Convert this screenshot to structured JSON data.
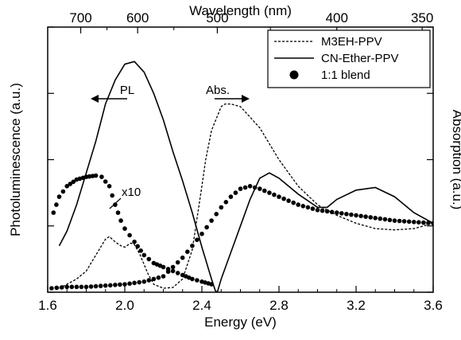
{
  "chart_data": {
    "type": "line",
    "xlabel": "Energy (eV)",
    "ylabel": "Photoluminescence (a.u.)",
    "ylabel_right": "Absorption (a.u.)",
    "xlabel_top": "Wavelength (nm)",
    "xlim": [
      1.6,
      3.6
    ],
    "ylim": [
      0,
      100
    ],
    "x_ticks": [
      1.6,
      2.0,
      2.4,
      2.8,
      3.2,
      3.6
    ],
    "x_tick_labels": [
      "1.6",
      "2.0",
      "2.4",
      "2.8",
      "3.2",
      "3.6"
    ],
    "x_minor_step": 0.1,
    "y_ticks": [
      0,
      25,
      50,
      75,
      100
    ],
    "top_ticks_nm": [
      700,
      600,
      500,
      400,
      350
    ],
    "top_tick_labels": [
      "700",
      "600",
      "500",
      "400",
      "350"
    ],
    "top_minor_nm": [
      650,
      550,
      450
    ],
    "grid": false,
    "legend_position": "top-right",
    "annotations": {
      "pl": "PL",
      "abs": "Abs.",
      "x10": "x10"
    },
    "series": [
      {
        "name": "M3EH-PPV",
        "style": "dashed",
        "points": [
          [
            1.66,
            1.5
          ],
          [
            1.7,
            3
          ],
          [
            1.75,
            5
          ],
          [
            1.8,
            8
          ],
          [
            1.85,
            14
          ],
          [
            1.9,
            20
          ],
          [
            1.92,
            21
          ],
          [
            1.95,
            19
          ],
          [
            1.98,
            17.5
          ],
          [
            2.0,
            17
          ],
          [
            2.03,
            18.5
          ],
          [
            2.05,
            18
          ],
          [
            2.08,
            14
          ],
          [
            2.12,
            7
          ],
          [
            2.15,
            3
          ],
          [
            2.2,
            1.5
          ],
          [
            2.25,
            1.8
          ],
          [
            2.3,
            5
          ],
          [
            2.35,
            16
          ],
          [
            2.4,
            40
          ],
          [
            2.42,
            50
          ],
          [
            2.45,
            61
          ],
          [
            2.5,
            70
          ],
          [
            2.52,
            71
          ],
          [
            2.55,
            71
          ],
          [
            2.6,
            70
          ],
          [
            2.7,
            62
          ],
          [
            2.8,
            50
          ],
          [
            2.9,
            40
          ],
          [
            3.0,
            33
          ],
          [
            3.1,
            29
          ],
          [
            3.2,
            26
          ],
          [
            3.3,
            24
          ],
          [
            3.4,
            23.5
          ],
          [
            3.5,
            24
          ],
          [
            3.6,
            26
          ]
        ]
      },
      {
        "name": "CN-Ether-PPV",
        "style": "solid",
        "points": [
          [
            1.66,
            17.5
          ],
          [
            1.7,
            23
          ],
          [
            1.75,
            33
          ],
          [
            1.8,
            45
          ],
          [
            1.85,
            57
          ],
          [
            1.9,
            71
          ],
          [
            1.95,
            80
          ],
          [
            2.0,
            86
          ],
          [
            2.05,
            87
          ],
          [
            2.1,
            83
          ],
          [
            2.15,
            75
          ],
          [
            2.2,
            65
          ],
          [
            2.25,
            53
          ],
          [
            2.3,
            42
          ],
          [
            2.35,
            30
          ],
          [
            2.4,
            17
          ],
          [
            2.45,
            5
          ],
          [
            2.47,
            0.5
          ],
          [
            2.48,
            0
          ],
          [
            2.5,
            5
          ],
          [
            2.55,
            15
          ],
          [
            2.6,
            25
          ],
          [
            2.65,
            35
          ],
          [
            2.7,
            43
          ],
          [
            2.75,
            45
          ],
          [
            2.8,
            43
          ],
          [
            2.9,
            37
          ],
          [
            3.0,
            32
          ],
          [
            3.05,
            32
          ],
          [
            3.1,
            35
          ],
          [
            3.2,
            38.5
          ],
          [
            3.3,
            39.5
          ],
          [
            3.4,
            36
          ],
          [
            3.5,
            30
          ],
          [
            3.6,
            26
          ]
        ]
      },
      {
        "name": "1:1 blend",
        "style": "dots",
        "points_pl": [
          [
            1.63,
            30
          ],
          [
            1.66,
            36
          ],
          [
            1.7,
            40
          ],
          [
            1.75,
            42.5
          ],
          [
            1.8,
            43.5
          ],
          [
            1.85,
            44
          ],
          [
            1.88,
            43.5
          ],
          [
            1.92,
            40
          ],
          [
            1.95,
            33
          ],
          [
            1.98,
            27
          ],
          [
            2.0,
            24
          ],
          [
            2.05,
            19
          ],
          [
            2.1,
            14
          ],
          [
            2.15,
            11
          ],
          [
            2.2,
            9.5
          ],
          [
            2.25,
            8
          ],
          [
            2.3,
            6.5
          ],
          [
            2.35,
            5
          ],
          [
            2.4,
            4
          ],
          [
            2.45,
            3
          ]
        ],
        "points_abs": [
          [
            1.62,
            1.5
          ],
          [
            1.7,
            2
          ],
          [
            1.8,
            2
          ],
          [
            1.9,
            2.5
          ],
          [
            2.0,
            3
          ],
          [
            2.1,
            4
          ],
          [
            2.2,
            6
          ],
          [
            2.3,
            13
          ],
          [
            2.4,
            22
          ],
          [
            2.5,
            32
          ],
          [
            2.55,
            36
          ],
          [
            2.6,
            39
          ],
          [
            2.65,
            40
          ],
          [
            2.7,
            39
          ],
          [
            2.8,
            36
          ],
          [
            2.9,
            33
          ],
          [
            3.0,
            31
          ],
          [
            3.1,
            30
          ],
          [
            3.2,
            29
          ],
          [
            3.3,
            28
          ],
          [
            3.4,
            27
          ],
          [
            3.5,
            26.5
          ],
          [
            3.6,
            26
          ]
        ]
      }
    ]
  }
}
